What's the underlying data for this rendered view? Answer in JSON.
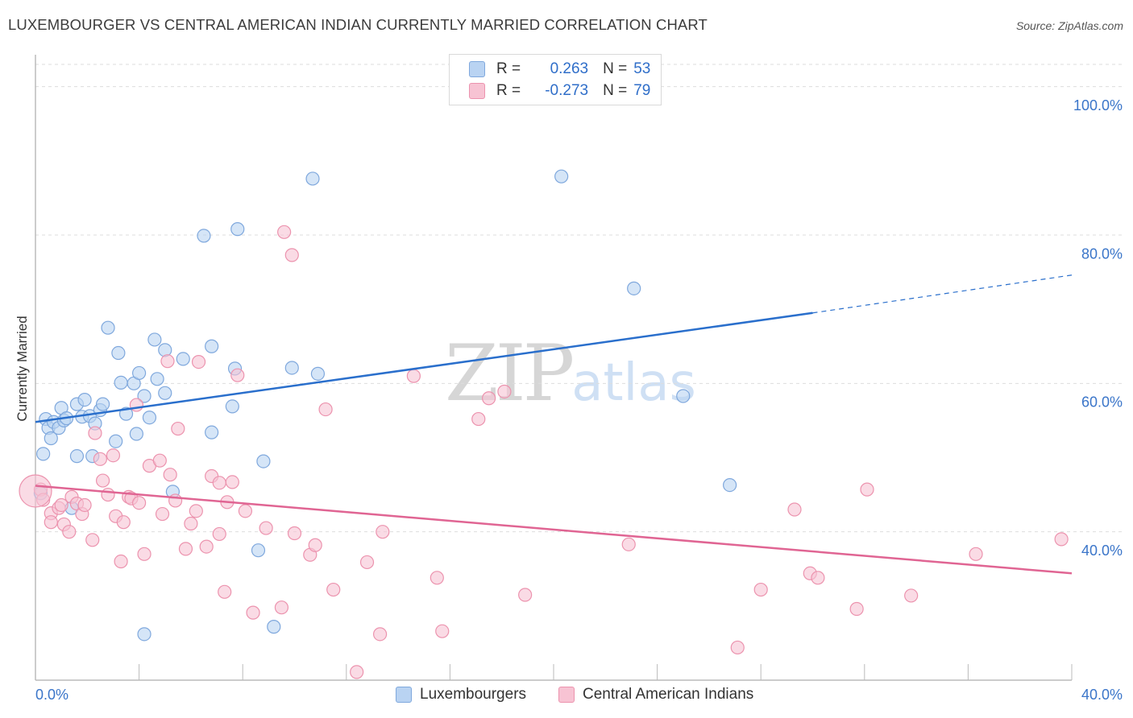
{
  "title": "LUXEMBOURGER VS CENTRAL AMERICAN INDIAN CURRENTLY MARRIED CORRELATION CHART",
  "source": "Source: ZipAtlas.com",
  "watermark": {
    "zip": "ZIP",
    "atlas": "atlas"
  },
  "colors": {
    "blue_fill": "#b9d3f2",
    "blue_stroke": "#7fa8dd",
    "blue_line": "#2a6fcc",
    "pink_fill": "#f7c3d3",
    "pink_stroke": "#ec93ae",
    "pink_line": "#e06593",
    "tick_label": "#3a75c9",
    "grid": "#dddddd"
  },
  "legend": {
    "r_label": "R =",
    "n_label": "N =",
    "rows": [
      {
        "r": "0.263",
        "n": "53"
      },
      {
        "r": "-0.273",
        "n": "79"
      }
    ]
  },
  "chart_data": {
    "type": "scatter",
    "title": "LUXEMBOURGER VS CENTRAL AMERICAN INDIAN CURRENTLY MARRIED CORRELATION CHART",
    "xlabel": "",
    "ylabel": "Currently Married",
    "xlim": [
      0,
      40
    ],
    "ylim": [
      20,
      103
    ],
    "x_tick_labels": [
      "0.0%",
      "40.0%"
    ],
    "y_ticks": [
      40,
      60,
      80,
      100
    ],
    "y_tick_labels": [
      "40.0%",
      "60.0%",
      "80.0%",
      "100.0%"
    ],
    "grid": "horizontal dashed",
    "legend_position": "top-center and bottom",
    "series": [
      {
        "name": "Luxemburgers",
        "legend_label": "Luxembourgers",
        "r": 0.263,
        "n": 53,
        "trend": {
          "x0": 0,
          "y0": 54.8,
          "x1": 30,
          "y1": 69.5,
          "dashed_to": {
            "x": 40,
            "y": 74.6
          }
        },
        "points": [
          [
            0.2,
            45.2
          ],
          [
            0.3,
            50.5
          ],
          [
            0.4,
            55.2
          ],
          [
            0.5,
            54.0
          ],
          [
            0.6,
            52.6
          ],
          [
            0.7,
            54.8
          ],
          [
            0.9,
            54.0
          ],
          [
            1.0,
            56.7
          ],
          [
            1.1,
            55.0
          ],
          [
            1.2,
            55.3
          ],
          [
            1.4,
            43.2
          ],
          [
            1.6,
            50.2
          ],
          [
            1.6,
            57.2
          ],
          [
            1.8,
            55.5
          ],
          [
            1.9,
            57.8
          ],
          [
            2.1,
            55.6
          ],
          [
            2.2,
            50.2
          ],
          [
            2.3,
            54.6
          ],
          [
            2.5,
            56.4
          ],
          [
            2.6,
            57.2
          ],
          [
            2.8,
            67.5
          ],
          [
            3.1,
            52.2
          ],
          [
            3.2,
            64.1
          ],
          [
            3.3,
            60.1
          ],
          [
            3.5,
            55.9
          ],
          [
            3.8,
            60.0
          ],
          [
            3.9,
            53.2
          ],
          [
            4.0,
            61.4
          ],
          [
            4.2,
            58.3
          ],
          [
            4.2,
            26.2
          ],
          [
            4.4,
            55.4
          ],
          [
            4.6,
            65.9
          ],
          [
            4.7,
            60.6
          ],
          [
            5.0,
            58.7
          ],
          [
            5.0,
            64.5
          ],
          [
            5.7,
            63.3
          ],
          [
            6.5,
            79.9
          ],
          [
            6.8,
            53.4
          ],
          [
            6.8,
            65.0
          ],
          [
            7.6,
            56.9
          ],
          [
            7.7,
            62.0
          ],
          [
            7.8,
            80.8
          ],
          [
            8.6,
            37.5
          ],
          [
            8.8,
            49.5
          ],
          [
            9.2,
            27.2
          ],
          [
            9.9,
            62.1
          ],
          [
            10.7,
            87.6
          ],
          [
            10.9,
            61.3
          ],
          [
            20.3,
            87.9
          ],
          [
            23.1,
            72.8
          ],
          [
            25.0,
            58.3
          ],
          [
            26.8,
            46.3
          ],
          [
            5.3,
            45.4
          ]
        ]
      },
      {
        "name": "Central American Indians",
        "legend_label": "Central American Indians",
        "r": -0.273,
        "n": 79,
        "trend": {
          "x0": 0,
          "y0": 46.2,
          "x1": 40,
          "y1": 34.4
        },
        "points": [
          [
            0.2,
            45.7
          ],
          [
            0.3,
            44.3
          ],
          [
            0.6,
            42.5
          ],
          [
            0.6,
            41.3
          ],
          [
            0.9,
            43.2
          ],
          [
            1.0,
            43.6
          ],
          [
            1.1,
            41.0
          ],
          [
            1.3,
            40.0
          ],
          [
            1.4,
            44.7
          ],
          [
            1.6,
            43.8
          ],
          [
            1.8,
            42.4
          ],
          [
            1.9,
            43.6
          ],
          [
            2.2,
            38.9
          ],
          [
            2.3,
            53.3
          ],
          [
            2.5,
            49.8
          ],
          [
            2.6,
            46.9
          ],
          [
            2.8,
            45.0
          ],
          [
            3.0,
            50.3
          ],
          [
            3.1,
            42.1
          ],
          [
            3.3,
            36.0
          ],
          [
            3.4,
            41.3
          ],
          [
            3.6,
            44.7
          ],
          [
            3.7,
            44.5
          ],
          [
            3.9,
            57.1
          ],
          [
            4.0,
            43.9
          ],
          [
            4.2,
            37.0
          ],
          [
            4.4,
            48.9
          ],
          [
            4.8,
            49.6
          ],
          [
            4.9,
            42.4
          ],
          [
            5.1,
            63.0
          ],
          [
            5.2,
            47.7
          ],
          [
            5.4,
            44.2
          ],
          [
            5.5,
            53.9
          ],
          [
            5.8,
            37.7
          ],
          [
            6.0,
            41.1
          ],
          [
            6.2,
            42.8
          ],
          [
            6.3,
            62.9
          ],
          [
            6.6,
            38.0
          ],
          [
            6.8,
            47.5
          ],
          [
            7.1,
            39.7
          ],
          [
            7.1,
            46.6
          ],
          [
            7.3,
            31.9
          ],
          [
            7.4,
            44.0
          ],
          [
            7.6,
            46.7
          ],
          [
            7.8,
            61.1
          ],
          [
            8.1,
            42.8
          ],
          [
            8.4,
            29.1
          ],
          [
            8.9,
            40.5
          ],
          [
            9.5,
            29.8
          ],
          [
            9.6,
            80.4
          ],
          [
            9.9,
            77.3
          ],
          [
            10.0,
            39.8
          ],
          [
            10.6,
            36.9
          ],
          [
            10.8,
            38.2
          ],
          [
            11.2,
            56.5
          ],
          [
            11.5,
            32.2
          ],
          [
            12.4,
            21.1
          ],
          [
            12.8,
            35.9
          ],
          [
            13.3,
            26.2
          ],
          [
            13.4,
            40.0
          ],
          [
            14.6,
            61.0
          ],
          [
            15.5,
            33.8
          ],
          [
            15.7,
            26.6
          ],
          [
            17.1,
            55.2
          ],
          [
            17.5,
            58.0
          ],
          [
            18.1,
            58.9
          ],
          [
            18.9,
            31.5
          ],
          [
            22.9,
            38.3
          ],
          [
            27.1,
            24.4
          ],
          [
            28.0,
            32.2
          ],
          [
            29.3,
            43.0
          ],
          [
            29.9,
            34.4
          ],
          [
            30.2,
            33.8
          ],
          [
            31.7,
            29.6
          ],
          [
            32.1,
            45.7
          ],
          [
            33.8,
            31.4
          ],
          [
            36.3,
            37.0
          ],
          [
            39.6,
            39.0
          ],
          [
            0.0,
            45.5
          ]
        ]
      }
    ]
  }
}
